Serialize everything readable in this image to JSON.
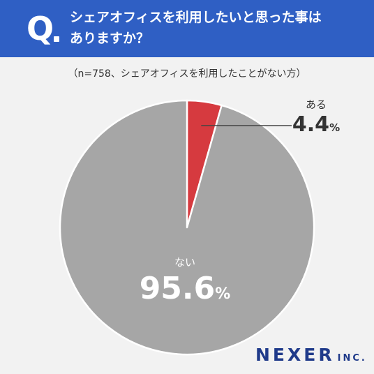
{
  "header": {
    "q_letter": "Q",
    "question_line1": "シェアオフィスを利用したいと思った事は",
    "question_line2": "ありますか？"
  },
  "subtitle": "（n=758、シェアオフィスを利用したことがない方）",
  "chart_data": {
    "type": "pie",
    "categories": [
      "ある",
      "ない"
    ],
    "values": [
      4.4,
      95.6
    ],
    "value_labels": [
      "4.4",
      "95.6"
    ],
    "unit": "%",
    "colors": [
      "#d63a3f",
      "#a6a6a6"
    ],
    "start_angle": "12 o'clock",
    "direction": "clockwise",
    "legend": "none"
  },
  "logo": {
    "main": "NEXER",
    "suffix": "INC."
  }
}
